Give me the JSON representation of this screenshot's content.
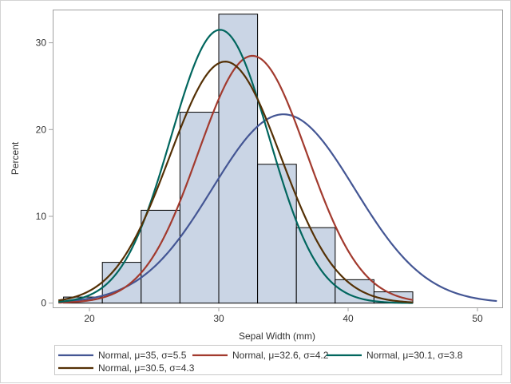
{
  "chart_data": {
    "type": "bar",
    "title": "",
    "xlabel": "Sepal Width (mm)",
    "ylabel": "Percent",
    "xlim": [
      17.5,
      52
    ],
    "ylim": [
      0,
      33.5
    ],
    "xticks": [
      20,
      30,
      40,
      50
    ],
    "yticks": [
      0,
      10,
      20,
      30
    ],
    "grid": false,
    "legend_position": "bottom",
    "histogram": {
      "bin_width": 3,
      "bins": [
        {
          "start": 18,
          "end": 21,
          "value": 0.7
        },
        {
          "start": 21,
          "end": 24,
          "value": 4.7
        },
        {
          "start": 24,
          "end": 27,
          "value": 10.7
        },
        {
          "start": 27,
          "end": 30,
          "value": 22.0
        },
        {
          "start": 30,
          "end": 33,
          "value": 33.3
        },
        {
          "start": 33,
          "end": 36,
          "value": 16.0
        },
        {
          "start": 36,
          "end": 39,
          "value": 8.7
        },
        {
          "start": 39,
          "end": 42,
          "value": 2.7
        },
        {
          "start": 42,
          "end": 45,
          "value": 1.3
        }
      ],
      "fill_color": "#CAD5E5",
      "edge_color": "#000000"
    },
    "series": [
      {
        "name": "Normal, μ=35, σ=5.5",
        "type": "line",
        "mu": 35,
        "sigma": 5.5,
        "x_range": [
          17.6,
          51.5
        ],
        "color": "#445694"
      },
      {
        "name": "Normal, μ=32.6, σ=4.2",
        "type": "line",
        "mu": 32.6,
        "sigma": 4.2,
        "x_range": [
          17.6,
          45
        ],
        "color": "#A23A2E"
      },
      {
        "name": "Normal, μ=30.1, σ=3.8",
        "type": "line",
        "mu": 30.1,
        "sigma": 3.8,
        "x_range": [
          17.6,
          45
        ],
        "color": "#01665E"
      },
      {
        "name": "Normal, μ=30.5, σ=4.3",
        "type": "line",
        "mu": 30.5,
        "sigma": 4.3,
        "x_range": [
          17.6,
          45
        ],
        "color": "#543005"
      }
    ]
  }
}
